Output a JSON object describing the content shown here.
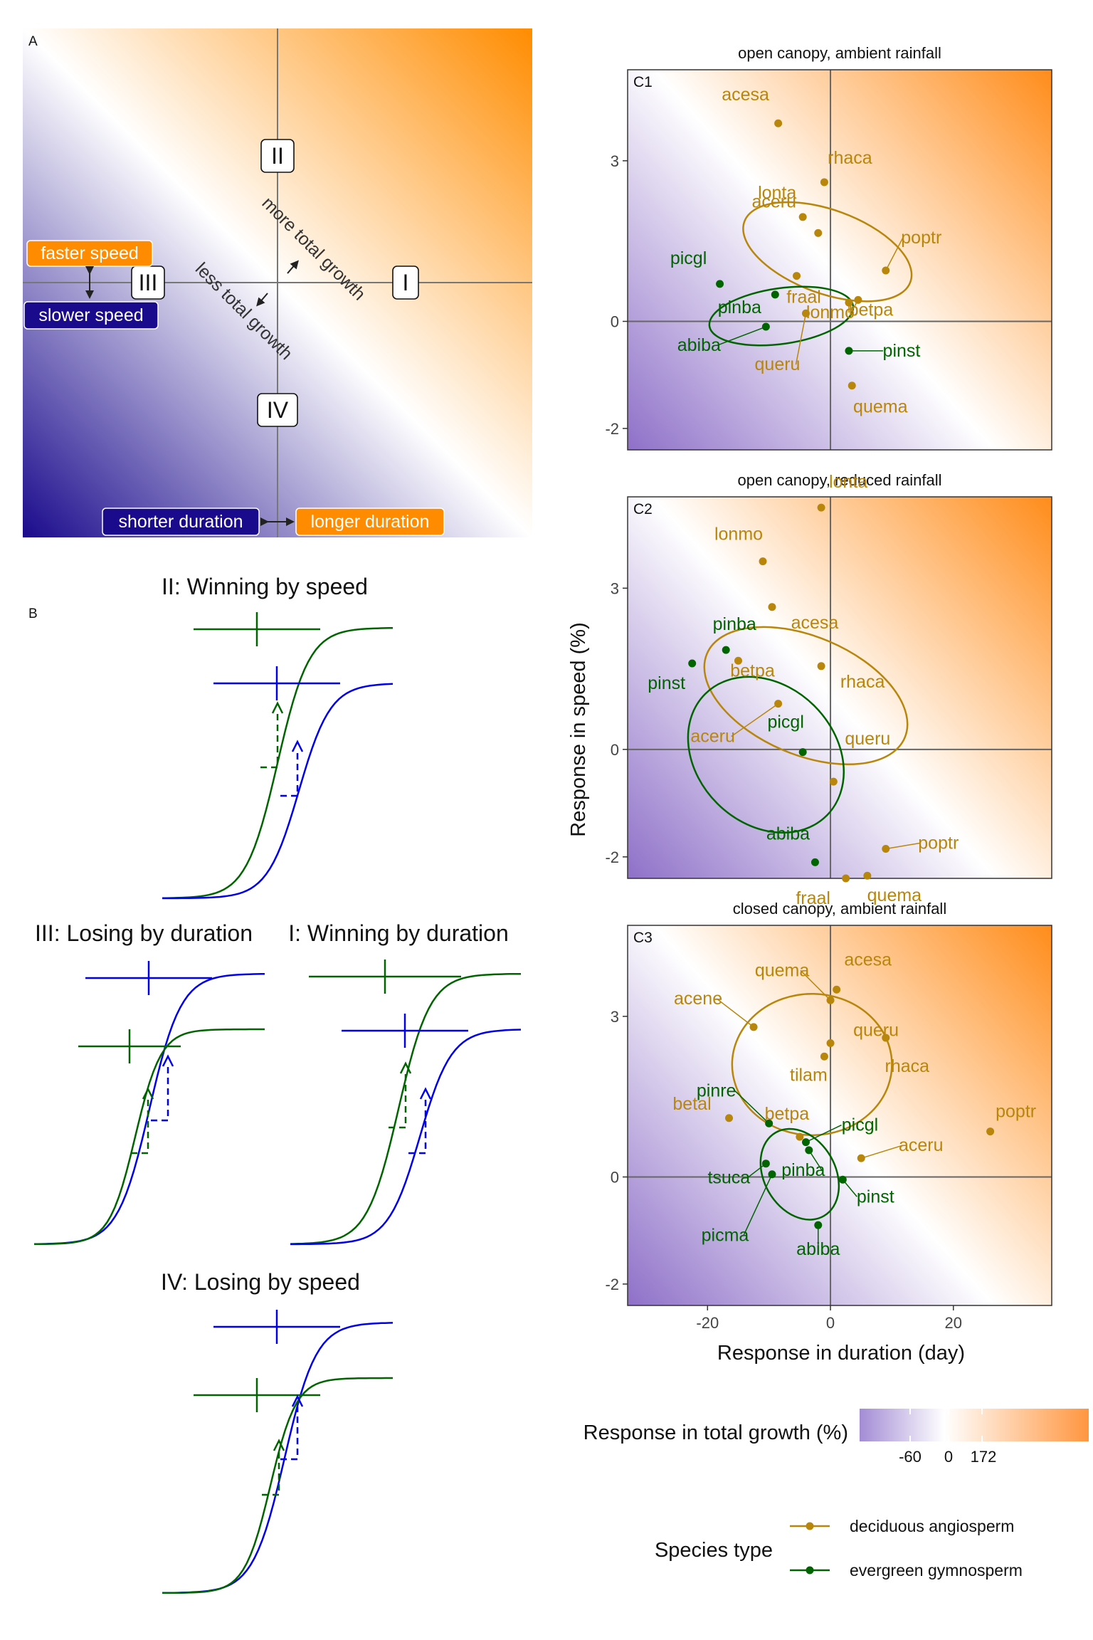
{
  "panel_a": {
    "letter": "A",
    "quadrant_labels": [
      "I",
      "II",
      "III",
      "IV"
    ],
    "more_total_growth": "more total growth",
    "less_total_growth": "less total growth",
    "faster_speed": "faster speed",
    "slower_speed": "slower speed",
    "shorter_duration": "shorter duration",
    "longer_duration": "longer duration"
  },
  "panel_b": {
    "letter": "B",
    "titles": {
      "II": "II: Winning by speed",
      "III": "III: Losing by duration",
      "I": "I: Winning by duration",
      "IV": "IV: Losing by speed"
    }
  },
  "legend": {
    "fill_title": "Response in total growth (%)",
    "fill_ticks": [
      "-60",
      "0",
      "172"
    ],
    "species_title": "Species type",
    "species": [
      {
        "name": "deciduous angiosperm",
        "color": "#b8860b"
      },
      {
        "name": "evergreen gymnosperm",
        "color": "#006400"
      }
    ]
  },
  "colors": {
    "deciduous": "#b8860b",
    "evergreen": "#006400",
    "high": "#ff8c00",
    "low": "#1a0a8c",
    "blue": "#0000ee"
  },
  "chart_data": [
    {
      "type": "scatter",
      "id": "C1",
      "title": "open canopy, ambient rainfall",
      "xlabel": "Response in duration (day)",
      "ylabel": "Response in speed (%)",
      "xlim": [
        -33,
        36
      ],
      "ylim": [
        -2.4,
        4.7
      ],
      "xticks": [
        -20,
        0,
        20
      ],
      "yticks": [
        -2,
        0,
        3
      ],
      "points": [
        {
          "name": "acesa",
          "type": "deciduous",
          "x": -8.5,
          "y": 3.7
        },
        {
          "name": "rhaca",
          "type": "deciduous",
          "x": -1,
          "y": 2.6
        },
        {
          "name": "lonta",
          "type": "deciduous",
          "x": -4.5,
          "y": 1.95
        },
        {
          "name": "aceru",
          "type": "deciduous",
          "x": -2,
          "y": 1.65
        },
        {
          "name": "fraal",
          "type": "deciduous",
          "x": -5.5,
          "y": 0.85
        },
        {
          "name": "poptr",
          "type": "deciduous",
          "x": 9,
          "y": 0.95
        },
        {
          "name": "betpa",
          "type": "deciduous",
          "x": 4.5,
          "y": 0.4
        },
        {
          "name": "lonmo",
          "type": "deciduous",
          "x": 3,
          "y": 0.35
        },
        {
          "name": "queru",
          "type": "deciduous",
          "x": -4,
          "y": 0.15
        },
        {
          "name": "quema",
          "type": "deciduous",
          "x": 3.5,
          "y": -1.2
        },
        {
          "name": "picgl",
          "type": "evergreen",
          "x": -18,
          "y": 0.7
        },
        {
          "name": "pinba",
          "type": "evergreen",
          "x": -9,
          "y": 0.5
        },
        {
          "name": "abiba",
          "type": "evergreen",
          "x": -10.5,
          "y": -0.1
        },
        {
          "name": "pinst",
          "type": "evergreen",
          "x": 3,
          "y": -0.55
        }
      ]
    },
    {
      "type": "scatter",
      "id": "C2",
      "title": "open canopy, reduced rainfall",
      "xlim": [
        -33,
        36
      ],
      "ylim": [
        -2.4,
        4.7
      ],
      "xticks": [
        -20,
        0,
        20
      ],
      "yticks": [
        -2,
        0,
        3
      ],
      "points": [
        {
          "name": "lonta",
          "type": "deciduous",
          "x": -1.5,
          "y": 4.5
        },
        {
          "name": "lonmo",
          "type": "deciduous",
          "x": -11,
          "y": 3.5
        },
        {
          "name": "acesa",
          "type": "deciduous",
          "x": -9.5,
          "y": 2.65
        },
        {
          "name": "rhaca",
          "type": "deciduous",
          "x": -1.5,
          "y": 1.55
        },
        {
          "name": "betpa",
          "type": "deciduous",
          "x": -15,
          "y": 1.65
        },
        {
          "name": "aceru",
          "type": "deciduous",
          "x": -8.5,
          "y": 0.85
        },
        {
          "name": "queru",
          "type": "deciduous",
          "x": 0.5,
          "y": -0.6
        },
        {
          "name": "poptr",
          "type": "deciduous",
          "x": 9,
          "y": -1.85
        },
        {
          "name": "fraal",
          "type": "deciduous",
          "x": 2.5,
          "y": -2.4
        },
        {
          "name": "quema",
          "type": "deciduous",
          "x": 6,
          "y": -2.35
        },
        {
          "name": "pinba",
          "type": "evergreen",
          "x": -17,
          "y": 1.85
        },
        {
          "name": "pinst",
          "type": "evergreen",
          "x": -22.5,
          "y": 1.6
        },
        {
          "name": "picgl",
          "type": "evergreen",
          "x": -4.5,
          "y": -0.05
        },
        {
          "name": "abiba",
          "type": "evergreen",
          "x": -2.5,
          "y": -2.1
        }
      ]
    },
    {
      "type": "scatter",
      "id": "C3",
      "title": "closed canopy, ambient rainfall",
      "xlim": [
        -33,
        36
      ],
      "ylim": [
        -2.4,
        4.7
      ],
      "xticks": [
        -20,
        0,
        20
      ],
      "yticks": [
        -2,
        0,
        3
      ],
      "points": [
        {
          "name": "acesa",
          "type": "deciduous",
          "x": 1,
          "y": 3.5
        },
        {
          "name": "quema",
          "type": "deciduous",
          "x": 0,
          "y": 3.3
        },
        {
          "name": "acene",
          "type": "deciduous",
          "x": -12.5,
          "y": 2.8
        },
        {
          "name": "queru",
          "type": "deciduous",
          "x": 0,
          "y": 2.5
        },
        {
          "name": "tilam",
          "type": "deciduous",
          "x": -1,
          "y": 2.25
        },
        {
          "name": "rhaca",
          "type": "deciduous",
          "x": 9,
          "y": 2.6
        },
        {
          "name": "betal",
          "type": "deciduous",
          "x": -16.5,
          "y": 1.1
        },
        {
          "name": "betpa",
          "type": "deciduous",
          "x": -5,
          "y": 0.75
        },
        {
          "name": "poptr",
          "type": "deciduous",
          "x": 26,
          "y": 0.85
        },
        {
          "name": "aceru",
          "type": "deciduous",
          "x": 5,
          "y": 0.35
        },
        {
          "name": "pinre",
          "type": "evergreen",
          "x": -10,
          "y": 1.0
        },
        {
          "name": "picgl",
          "type": "evergreen",
          "x": -4,
          "y": 0.65
        },
        {
          "name": "pinba",
          "type": "evergreen",
          "x": -3.5,
          "y": 0.5
        },
        {
          "name": "tsuca",
          "type": "evergreen",
          "x": -10.5,
          "y": 0.25
        },
        {
          "name": "picma",
          "type": "evergreen",
          "x": -9.5,
          "y": 0.05
        },
        {
          "name": "pinst",
          "type": "evergreen",
          "x": 2,
          "y": -0.05
        },
        {
          "name": "abiba",
          "type": "evergreen",
          "x": -2,
          "y": -0.9
        }
      ]
    }
  ]
}
